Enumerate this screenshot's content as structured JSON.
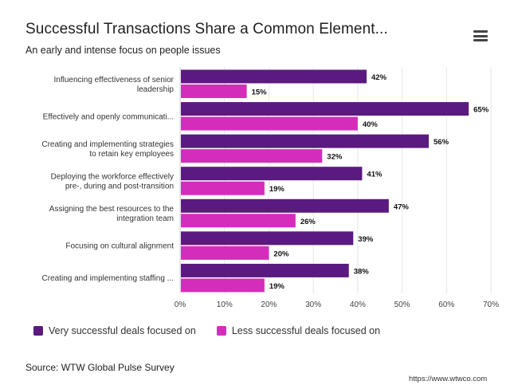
{
  "title": "Successful Transactions Share a Common Element...",
  "subtitle": "An early and intense focus on people issues",
  "menu_icon": "hamburger-menu-icon",
  "source": "Source: WTW Global Pulse Survey",
  "credit": "https://www.wtwco.com",
  "colors": {
    "series1": "#5a1a7f",
    "series2": "#d42dbb"
  },
  "chart_data": {
    "type": "bar",
    "orientation": "horizontal",
    "categories": [
      [
        "Influencing effectiveness of   senior",
        "leadership"
      ],
      [
        "Effectively and openly communicati..."
      ],
      [
        "Creating and implementing strategies",
        "to retain key employees"
      ],
      [
        "Deploying the workforce effectively",
        "pre-, during and post-transition"
      ],
      [
        "Assigning the best resources   to the",
        "integration team"
      ],
      [
        "Focusing on cultural alignment"
      ],
      [
        "Creating and implementing staffing ..."
      ]
    ],
    "series": [
      {
        "name": "Very successful deals focused on",
        "values": [
          42,
          65,
          56,
          41,
          47,
          39,
          38
        ]
      },
      {
        "name": "Less successful deals focused on",
        "values": [
          15,
          40,
          32,
          19,
          26,
          20,
          19
        ]
      }
    ],
    "value_suffix": "%",
    "xlim": [
      0,
      70
    ],
    "xticks": [
      "0%",
      "10%",
      "20%",
      "30%",
      "40%",
      "50%",
      "60%",
      "70%"
    ],
    "grid": true,
    "legend": "bottom-left"
  }
}
